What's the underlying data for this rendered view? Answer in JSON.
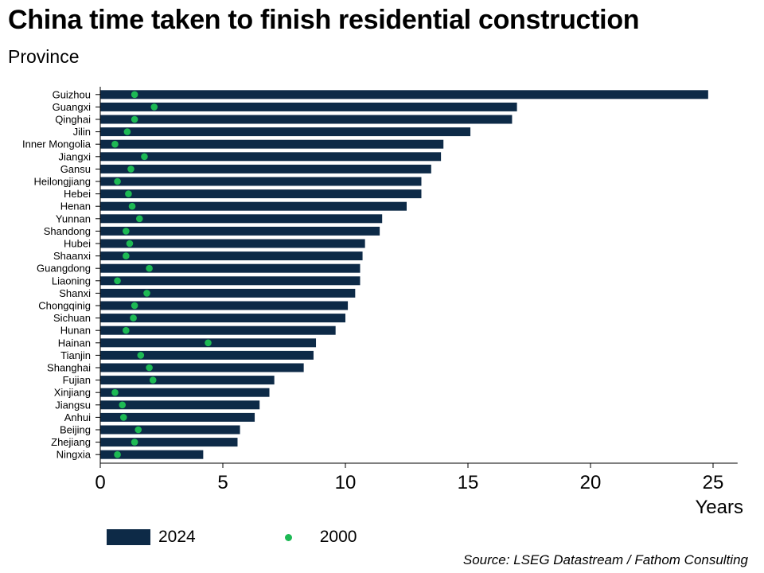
{
  "title": "China time taken to finish residential construction",
  "subtitle": "Province",
  "source": "Source: LSEG Datastream / Fathom Consulting",
  "colors": {
    "bar": "#0d2a47",
    "dot": "#1db954",
    "axis": "#000000"
  },
  "chart_data": {
    "type": "bar",
    "orientation": "horizontal",
    "categories": [
      "Guizhou",
      "Guangxi",
      "Qinghai",
      "Jilin",
      "Inner Mongolia",
      "Jiangxi",
      "Gansu",
      "Heilongjiang",
      "Hebei",
      "Henan",
      "Yunnan",
      "Shandong",
      "Hubei",
      "Shaanxi",
      "Guangdong",
      "Liaoning",
      "Shanxi",
      "Chongqinig",
      "Sichuan",
      "Hunan",
      "Hainan",
      "Tianjin",
      "Shanghai",
      "Fujian",
      "Xinjiang",
      "Jiangsu",
      "Anhui",
      "Beijing",
      "Zhejiang",
      "Ningxia"
    ],
    "series": [
      {
        "name": "2024",
        "kind": "bar",
        "values": [
          24.8,
          17.0,
          16.8,
          15.1,
          14.0,
          13.9,
          13.5,
          13.1,
          13.1,
          12.5,
          11.5,
          11.4,
          10.8,
          10.7,
          10.6,
          10.6,
          10.4,
          10.1,
          10.0,
          9.6,
          8.8,
          8.7,
          8.3,
          7.1,
          6.9,
          6.5,
          6.3,
          5.7,
          5.6,
          4.2
        ]
      },
      {
        "name": "2000",
        "kind": "dot",
        "values": [
          1.4,
          2.2,
          1.4,
          1.1,
          0.6,
          1.8,
          1.25,
          0.7,
          1.15,
          1.3,
          1.6,
          1.05,
          1.2,
          1.05,
          2.0,
          0.7,
          1.9,
          1.4,
          1.35,
          1.05,
          4.4,
          1.65,
          2.0,
          2.15,
          0.6,
          0.9,
          0.95,
          1.55,
          1.4,
          0.7
        ]
      }
    ],
    "xlabel": "Years",
    "xlim": [
      0,
      26
    ],
    "xticks": [
      0,
      5,
      10,
      15,
      20,
      25
    ],
    "grid": false,
    "legend": "bottom-left"
  }
}
